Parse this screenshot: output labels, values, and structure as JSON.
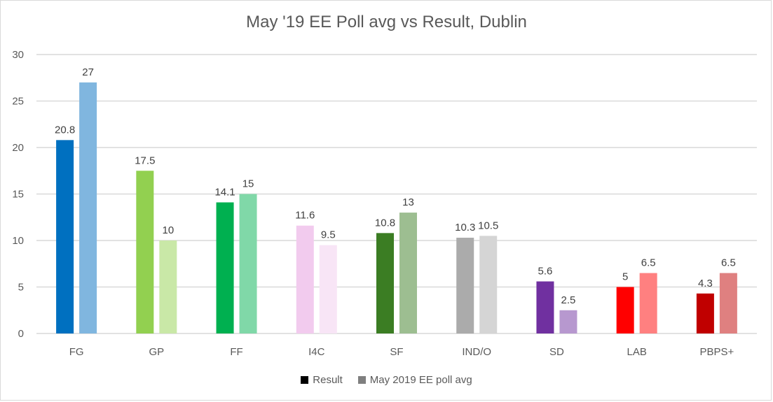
{
  "chart_data": {
    "type": "bar",
    "title": "May '19 EE Poll avg vs Result, Dublin",
    "xlabel": "",
    "ylabel": "",
    "ylim": [
      0,
      30
    ],
    "yticks": [
      0,
      5,
      10,
      15,
      20,
      25,
      30
    ],
    "grid": true,
    "legend_position": "bottom",
    "categories": [
      "FG",
      "GP",
      "FF",
      "I4C",
      "SF",
      "IND/O",
      "SD",
      "LAB",
      "PBPS+"
    ],
    "series": [
      {
        "name": "Result",
        "legend_color": "#000000",
        "values": [
          20.8,
          17.5,
          14.1,
          11.6,
          10.8,
          10.3,
          5.6,
          5,
          4.3
        ],
        "colors": [
          "#0070c0",
          "#92d050",
          "#00b050",
          "#f2cbee",
          "#3b7d23",
          "#ababab",
          "#7030a0",
          "#ff0000",
          "#c00000"
        ]
      },
      {
        "name": "May 2019 EE poll avg",
        "legend_color": "#7f7f7f",
        "values": [
          27,
          10,
          15,
          9.5,
          13,
          10.5,
          2.5,
          6.5,
          6.5
        ],
        "colors": [
          "#80b6df",
          "#c9e8a7",
          "#80d8a8",
          "#f8e5f6",
          "#9dbe91",
          "#d5d5d5",
          "#b798cf",
          "#ff8080",
          "#df8080"
        ]
      }
    ]
  }
}
